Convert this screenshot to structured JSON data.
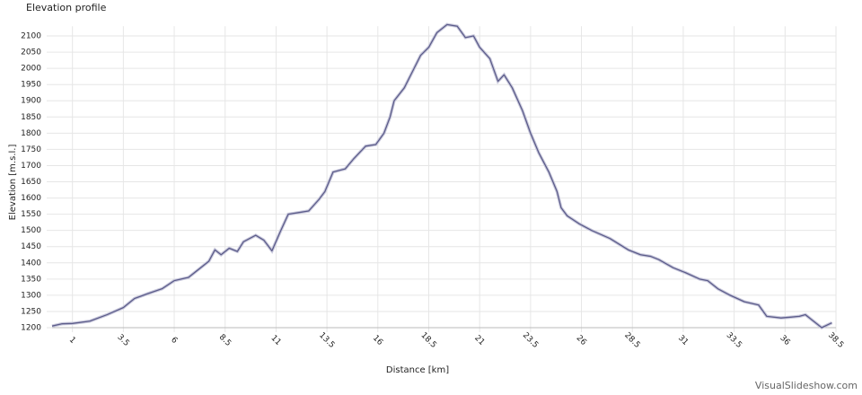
{
  "chart_data": {
    "type": "line",
    "title": "Elevation profile",
    "x_label": "Distance [km]",
    "y_label": "Elevation [m.s.l.]",
    "watermark": "VisualSlideshow.com",
    "xlim": [
      0,
      38.5
    ],
    "ylim": [
      1200,
      2130
    ],
    "xticks": [
      1,
      3.5,
      6,
      8.5,
      11,
      13.5,
      16,
      18.5,
      21,
      23.5,
      26,
      28.5,
      31,
      33.5,
      36,
      38.5
    ],
    "yticks": [
      1200,
      1250,
      1300,
      1350,
      1400,
      1450,
      1500,
      1550,
      1600,
      1650,
      1700,
      1750,
      1800,
      1850,
      1900,
      1950,
      2000,
      2050,
      2100
    ],
    "grid": true,
    "series": [
      {
        "name": "Elevation",
        "color": "#5c5c8a",
        "x": [
          0,
          0.5,
          1,
          1.85,
          2.7,
          3.5,
          4.05,
          4.7,
          5.4,
          6,
          6.7,
          7.1,
          7.7,
          8,
          8.3,
          8.7,
          9.1,
          9.4,
          10,
          10.4,
          10.8,
          11.2,
          11.6,
          12.1,
          12.6,
          13.1,
          13.4,
          13.8,
          14.4,
          14.8,
          15.4,
          15.9,
          16.3,
          16.6,
          16.8,
          17.3,
          17.7,
          18.1,
          18.5,
          18.9,
          19.4,
          19.9,
          20.3,
          20.7,
          21,
          21.5,
          21.9,
          22.2,
          22.6,
          23.1,
          23.5,
          23.9,
          24.4,
          24.8,
          25,
          25.3,
          25.9,
          26.5,
          27.4,
          28.3,
          28.9,
          29.4,
          29.8,
          30.5,
          31.1,
          31.8,
          32.2,
          32.7,
          33.3,
          34,
          34.7,
          35.1,
          35.8,
          36.2,
          36.7,
          37,
          37.3,
          37.8,
          38.3
        ],
        "values": [
          1205,
          1212,
          1213,
          1220,
          1240,
          1262,
          1290,
          1305,
          1320,
          1345,
          1355,
          1375,
          1405,
          1440,
          1425,
          1445,
          1435,
          1465,
          1485,
          1470,
          1437,
          1495,
          1550,
          1555,
          1560,
          1595,
          1620,
          1680,
          1690,
          1720,
          1760,
          1765,
          1800,
          1850,
          1900,
          1940,
          1990,
          2040,
          2065,
          2110,
          2135,
          2130,
          2095,
          2100,
          2065,
          2030,
          1960,
          1980,
          1940,
          1870,
          1800,
          1740,
          1680,
          1620,
          1570,
          1545,
          1520,
          1500,
          1475,
          1440,
          1425,
          1420,
          1410,
          1385,
          1370,
          1350,
          1345,
          1320,
          1300,
          1280,
          1270,
          1235,
          1230,
          1232,
          1235,
          1240,
          1225,
          1200,
          1215
        ]
      }
    ]
  }
}
